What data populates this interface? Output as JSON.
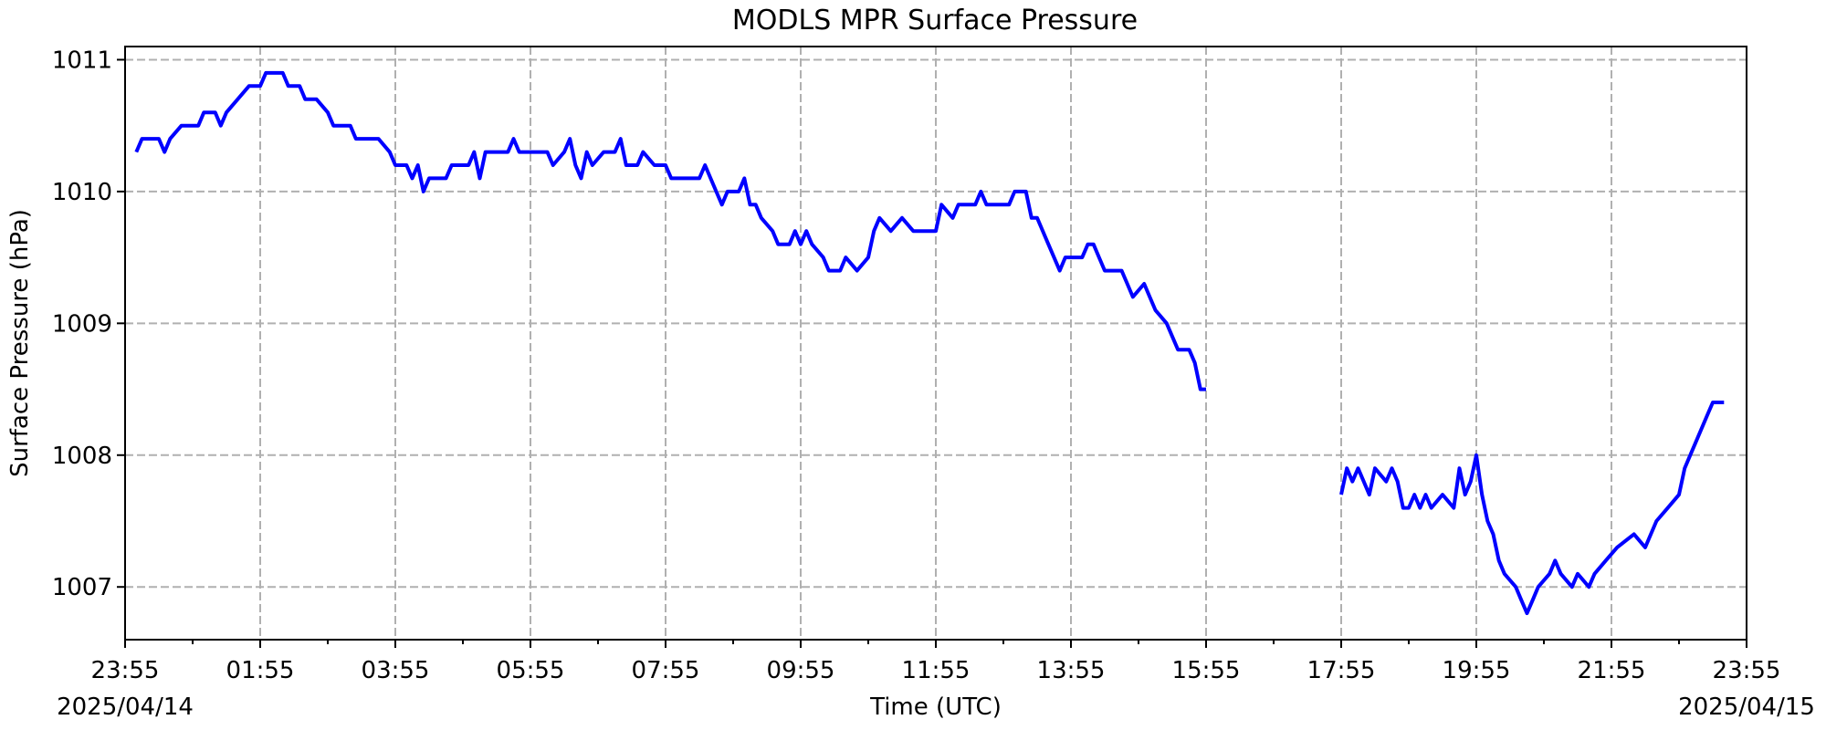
{
  "chart_data": {
    "type": "line",
    "title": "MODLS MPR Surface Pressure",
    "xlabel": "Time (UTC)",
    "ylabel": "Surface Pressure (hPa)",
    "x_start_label": "2025/04/14",
    "x_end_label": "2025/04/15",
    "xlim": [
      "2025-04-14 23:55",
      "2025-04-15 23:55"
    ],
    "ylim": [
      1006.6,
      1011.1
    ],
    "x_ticks": [
      "23:55",
      "01:55",
      "03:55",
      "05:55",
      "07:55",
      "09:55",
      "11:55",
      "13:55",
      "15:55",
      "17:55",
      "19:55",
      "21:55",
      "23:55"
    ],
    "y_ticks": [
      1007,
      1008,
      1009,
      1010,
      1011
    ],
    "grid": true,
    "color": "#0000ff",
    "series": [
      {
        "points": [
          [
            "2025-04-15 00:05",
            1010.3
          ],
          [
            "2025-04-15 00:10",
            1010.4
          ],
          [
            "2025-04-15 00:25",
            1010.4
          ],
          [
            "2025-04-15 00:30",
            1010.3
          ],
          [
            "2025-04-15 00:35",
            1010.4
          ],
          [
            "2025-04-15 00:45",
            1010.5
          ],
          [
            "2025-04-15 01:00",
            1010.5
          ],
          [
            "2025-04-15 01:05",
            1010.6
          ],
          [
            "2025-04-15 01:15",
            1010.6
          ],
          [
            "2025-04-15 01:20",
            1010.5
          ],
          [
            "2025-04-15 01:25",
            1010.6
          ],
          [
            "2025-04-15 01:35",
            1010.7
          ],
          [
            "2025-04-15 01:45",
            1010.8
          ],
          [
            "2025-04-15 01:55",
            1010.8
          ],
          [
            "2025-04-15 02:00",
            1010.9
          ],
          [
            "2025-04-15 02:15",
            1010.9
          ],
          [
            "2025-04-15 02:20",
            1010.8
          ],
          [
            "2025-04-15 02:30",
            1010.8
          ],
          [
            "2025-04-15 02:35",
            1010.7
          ],
          [
            "2025-04-15 02:45",
            1010.7
          ],
          [
            "2025-04-15 02:55",
            1010.6
          ],
          [
            "2025-04-15 03:00",
            1010.5
          ],
          [
            "2025-04-15 03:15",
            1010.5
          ],
          [
            "2025-04-15 03:20",
            1010.4
          ],
          [
            "2025-04-15 03:40",
            1010.4
          ],
          [
            "2025-04-15 03:50",
            1010.3
          ],
          [
            "2025-04-15 03:55",
            1010.2
          ],
          [
            "2025-04-15 04:05",
            1010.2
          ],
          [
            "2025-04-15 04:10",
            1010.1
          ],
          [
            "2025-04-15 04:15",
            1010.2
          ],
          [
            "2025-04-15 04:20",
            1010.0
          ],
          [
            "2025-04-15 04:25",
            1010.1
          ],
          [
            "2025-04-15 04:40",
            1010.1
          ],
          [
            "2025-04-15 04:45",
            1010.2
          ],
          [
            "2025-04-15 05:00",
            1010.2
          ],
          [
            "2025-04-15 05:05",
            1010.3
          ],
          [
            "2025-04-15 05:10",
            1010.1
          ],
          [
            "2025-04-15 05:15",
            1010.3
          ],
          [
            "2025-04-15 05:35",
            1010.3
          ],
          [
            "2025-04-15 05:40",
            1010.4
          ],
          [
            "2025-04-15 05:45",
            1010.3
          ],
          [
            "2025-04-15 06:10",
            1010.3
          ],
          [
            "2025-04-15 06:15",
            1010.2
          ],
          [
            "2025-04-15 06:25",
            1010.3
          ],
          [
            "2025-04-15 06:30",
            1010.4
          ],
          [
            "2025-04-15 06:35",
            1010.2
          ],
          [
            "2025-04-15 06:40",
            1010.1
          ],
          [
            "2025-04-15 06:45",
            1010.3
          ],
          [
            "2025-04-15 06:50",
            1010.2
          ],
          [
            "2025-04-15 07:00",
            1010.3
          ],
          [
            "2025-04-15 07:10",
            1010.3
          ],
          [
            "2025-04-15 07:15",
            1010.4
          ],
          [
            "2025-04-15 07:20",
            1010.2
          ],
          [
            "2025-04-15 07:30",
            1010.2
          ],
          [
            "2025-04-15 07:35",
            1010.3
          ],
          [
            "2025-04-15 07:45",
            1010.2
          ],
          [
            "2025-04-15 07:55",
            1010.2
          ],
          [
            "2025-04-15 08:00",
            1010.1
          ],
          [
            "2025-04-15 08:25",
            1010.1
          ],
          [
            "2025-04-15 08:30",
            1010.2
          ],
          [
            "2025-04-15 08:35",
            1010.1
          ],
          [
            "2025-04-15 08:40",
            1010.0
          ],
          [
            "2025-04-15 08:45",
            1009.9
          ],
          [
            "2025-04-15 08:50",
            1010.0
          ],
          [
            "2025-04-15 09:00",
            1010.0
          ],
          [
            "2025-04-15 09:05",
            1010.1
          ],
          [
            "2025-04-15 09:10",
            1009.9
          ],
          [
            "2025-04-15 09:15",
            1009.9
          ],
          [
            "2025-04-15 09:20",
            1009.8
          ],
          [
            "2025-04-15 09:30",
            1009.7
          ],
          [
            "2025-04-15 09:35",
            1009.6
          ],
          [
            "2025-04-15 09:45",
            1009.6
          ],
          [
            "2025-04-15 09:50",
            1009.7
          ],
          [
            "2025-04-15 09:55",
            1009.6
          ],
          [
            "2025-04-15 10:00",
            1009.7
          ],
          [
            "2025-04-15 10:05",
            1009.6
          ],
          [
            "2025-04-15 10:15",
            1009.5
          ],
          [
            "2025-04-15 10:20",
            1009.4
          ],
          [
            "2025-04-15 10:30",
            1009.4
          ],
          [
            "2025-04-15 10:35",
            1009.5
          ],
          [
            "2025-04-15 10:45",
            1009.4
          ],
          [
            "2025-04-15 10:55",
            1009.5
          ],
          [
            "2025-04-15 11:00",
            1009.7
          ],
          [
            "2025-04-15 11:05",
            1009.8
          ],
          [
            "2025-04-15 11:15",
            1009.7
          ],
          [
            "2025-04-15 11:25",
            1009.8
          ],
          [
            "2025-04-15 11:35",
            1009.7
          ],
          [
            "2025-04-15 11:55",
            1009.7
          ],
          [
            "2025-04-15 12:00",
            1009.9
          ],
          [
            "2025-04-15 12:10",
            1009.8
          ],
          [
            "2025-04-15 12:15",
            1009.9
          ],
          [
            "2025-04-15 12:30",
            1009.9
          ],
          [
            "2025-04-15 12:35",
            1010.0
          ],
          [
            "2025-04-15 12:40",
            1009.9
          ],
          [
            "2025-04-15 13:00",
            1009.9
          ],
          [
            "2025-04-15 13:05",
            1010.0
          ],
          [
            "2025-04-15 13:15",
            1010.0
          ],
          [
            "2025-04-15 13:20",
            1009.8
          ],
          [
            "2025-04-15 13:25",
            1009.8
          ],
          [
            "2025-04-15 13:35",
            1009.6
          ],
          [
            "2025-04-15 13:45",
            1009.4
          ],
          [
            "2025-04-15 13:50",
            1009.5
          ],
          [
            "2025-04-15 14:05",
            1009.5
          ],
          [
            "2025-04-15 14:10",
            1009.6
          ],
          [
            "2025-04-15 14:15",
            1009.6
          ],
          [
            "2025-04-15 14:20",
            1009.5
          ],
          [
            "2025-04-15 14:25",
            1009.4
          ],
          [
            "2025-04-15 14:40",
            1009.4
          ],
          [
            "2025-04-15 14:45",
            1009.3
          ],
          [
            "2025-04-15 14:50",
            1009.2
          ],
          [
            "2025-04-15 15:00",
            1009.3
          ],
          [
            "2025-04-15 15:05",
            1009.2
          ],
          [
            "2025-04-15 15:10",
            1009.1
          ],
          [
            "2025-04-15 15:20",
            1009.0
          ],
          [
            "2025-04-15 15:25",
            1008.9
          ],
          [
            "2025-04-15 15:30",
            1008.8
          ],
          [
            "2025-04-15 15:40",
            1008.8
          ],
          [
            "2025-04-15 15:45",
            1008.7
          ],
          [
            "2025-04-15 15:50",
            1008.5
          ],
          [
            "2025-04-15 15:55",
            1008.5
          ]
        ]
      },
      {
        "points": [
          [
            "2025-04-15 17:55",
            1007.7
          ],
          [
            "2025-04-15 18:00",
            1007.9
          ],
          [
            "2025-04-15 18:05",
            1007.8
          ],
          [
            "2025-04-15 18:10",
            1007.9
          ],
          [
            "2025-04-15 18:15",
            1007.8
          ],
          [
            "2025-04-15 18:20",
            1007.7
          ],
          [
            "2025-04-15 18:25",
            1007.9
          ],
          [
            "2025-04-15 18:35",
            1007.8
          ],
          [
            "2025-04-15 18:40",
            1007.9
          ],
          [
            "2025-04-15 18:45",
            1007.8
          ],
          [
            "2025-04-15 18:50",
            1007.6
          ],
          [
            "2025-04-15 18:55",
            1007.6
          ],
          [
            "2025-04-15 19:00",
            1007.7
          ],
          [
            "2025-04-15 19:05",
            1007.6
          ],
          [
            "2025-04-15 19:10",
            1007.7
          ],
          [
            "2025-04-15 19:15",
            1007.6
          ],
          [
            "2025-04-15 19:25",
            1007.7
          ],
          [
            "2025-04-15 19:35",
            1007.6
          ],
          [
            "2025-04-15 19:40",
            1007.9
          ],
          [
            "2025-04-15 19:45",
            1007.7
          ],
          [
            "2025-04-15 19:50",
            1007.8
          ],
          [
            "2025-04-15 19:55",
            1008.0
          ],
          [
            "2025-04-15 20:00",
            1007.7
          ],
          [
            "2025-04-15 20:05",
            1007.5
          ],
          [
            "2025-04-15 20:10",
            1007.4
          ],
          [
            "2025-04-15 20:15",
            1007.2
          ],
          [
            "2025-04-15 20:20",
            1007.1
          ],
          [
            "2025-04-15 20:30",
            1007.0
          ],
          [
            "2025-04-15 20:35",
            1006.9
          ],
          [
            "2025-04-15 20:40",
            1006.8
          ],
          [
            "2025-04-15 20:45",
            1006.9
          ],
          [
            "2025-04-15 20:50",
            1007.0
          ],
          [
            "2025-04-15 21:00",
            1007.1
          ],
          [
            "2025-04-15 21:05",
            1007.2
          ],
          [
            "2025-04-15 21:10",
            1007.1
          ],
          [
            "2025-04-15 21:20",
            1007.0
          ],
          [
            "2025-04-15 21:25",
            1007.1
          ],
          [
            "2025-04-15 21:35",
            1007.0
          ],
          [
            "2025-04-15 21:40",
            1007.1
          ],
          [
            "2025-04-15 21:50",
            1007.2
          ],
          [
            "2025-04-15 22:00",
            1007.3
          ],
          [
            "2025-04-15 22:15",
            1007.4
          ],
          [
            "2025-04-15 22:25",
            1007.3
          ],
          [
            "2025-04-15 22:35",
            1007.5
          ],
          [
            "2025-04-15 22:45",
            1007.6
          ],
          [
            "2025-04-15 22:55",
            1007.7
          ],
          [
            "2025-04-15 23:00",
            1007.9
          ],
          [
            "2025-04-15 23:05",
            1008.0
          ],
          [
            "2025-04-15 23:10",
            1008.1
          ],
          [
            "2025-04-15 23:20",
            1008.3
          ],
          [
            "2025-04-15 23:25",
            1008.4
          ],
          [
            "2025-04-15 23:35",
            1008.4
          ]
        ]
      }
    ]
  }
}
